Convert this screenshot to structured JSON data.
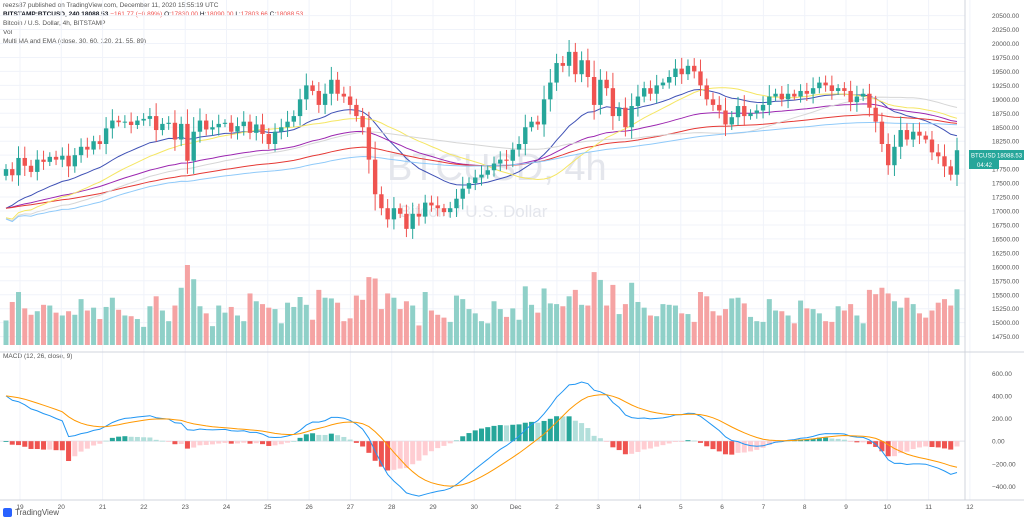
{
  "header": {
    "published": "reezs87 published on TradingView.com, December 11, 2020 15:55:19 UTC",
    "symbol": "BITSTAMP:BTCUSD, 240",
    "last": "18088.53",
    "change": "−161.77 (−0.89%)",
    "o_label": "O:",
    "o": "17830.00",
    "h_label": "H:",
    "h": "18090.00",
    "l_label": "L:",
    "l": "17803.66",
    "c_label": "C:",
    "c": "18088.53",
    "title_line": "Bitcoin / U.S. Dollar, 4h, BITSTAMP",
    "vol_label": "Vol",
    "ma_label": "Multi MA and EMA (close, 30, 60, 120, 21, 55, 89)",
    "macd_label": "MACD (12, 26, close, 9)"
  },
  "watermark": {
    "symbol": "BTCUSD, 4h",
    "name": "Bitcoin / U.S. Dollar"
  },
  "price_badge": {
    "symbol": "BTCUSD",
    "price": "18088.53",
    "countdown": "04:42"
  },
  "footer": {
    "brand": "TradingView"
  },
  "colors": {
    "up": "#26a69a",
    "down": "#ef5350",
    "vol_up": "#8fd0c8",
    "vol_down": "#f5a3a3",
    "macd_line": "#2196f3",
    "signal_line": "#ff9800"
  },
  "chart_data": [
    {
      "type": "candlestick",
      "x_labels": [
        "19",
        "20",
        "21",
        "22",
        "23",
        "24",
        "25",
        "26",
        "27",
        "28",
        "29",
        "30",
        "Dec",
        "2",
        "3",
        "4",
        "5",
        "6",
        "7",
        "8",
        "9",
        "10",
        "11",
        "12"
      ],
      "y_ticks": [
        "14750.00",
        "15000.00",
        "15250.00",
        "15500.00",
        "15750.00",
        "16000.00",
        "16250.00",
        "16500.00",
        "16750.00",
        "17000.00",
        "17250.00",
        "17500.00",
        "17750.00",
        "18000.00",
        "18250.00",
        "18500.00",
        "18750.00",
        "19000.00",
        "19250.00",
        "19500.00",
        "19750.00",
        "20000.00",
        "20250.00",
        "20500.00"
      ],
      "y_range": [
        14600,
        20600
      ],
      "close": [
        17750,
        17640,
        17950,
        17810,
        17700,
        17920,
        17880,
        17970,
        17920,
        17990,
        17800,
        18000,
        18150,
        18100,
        18250,
        18200,
        18480,
        18620,
        18590,
        18600,
        18540,
        18620,
        18650,
        18700,
        18450,
        18560,
        18580,
        18280,
        18560,
        17900,
        18420,
        18620,
        18460,
        18500,
        18560,
        18580,
        18420,
        18520,
        18600,
        18400,
        18550,
        18380,
        18200,
        18420,
        18500,
        18600,
        18700,
        19000,
        19250,
        19150,
        18900,
        19100,
        19350,
        19100,
        19050,
        18900,
        18700,
        18500,
        17920,
        17300,
        17050,
        16850,
        17050,
        16950,
        16680,
        16950,
        16900,
        17150,
        17100,
        17050,
        16980,
        17050,
        17220,
        17400,
        17500,
        17600,
        17650,
        17730,
        17850,
        17920,
        17900,
        18100,
        18200,
        18500,
        18600,
        18550,
        19000,
        19300,
        19650,
        19600,
        19850,
        19450,
        19700,
        19400,
        18900,
        19350,
        19200,
        18700,
        18850,
        18500,
        18880,
        19050,
        19200,
        19100,
        19250,
        19300,
        19400,
        19550,
        19450,
        19600,
        19500,
        19250,
        19000,
        18900,
        18800,
        18550,
        18680,
        18880,
        18700,
        18750,
        18800,
        18900,
        19050,
        19100,
        19000,
        19100,
        19050,
        19150,
        19100,
        19200,
        19300,
        19250,
        19150,
        19200,
        19150,
        18950,
        19050,
        19100,
        18850,
        18600,
        18200,
        17820,
        18150,
        18450,
        18280,
        18420,
        18350,
        18280,
        18050,
        17980,
        17800,
        17650,
        18088.53
      ],
      "indicators": [
        "Multi MA and EMA (close, 30, 60, 120, 21, 55, 89)"
      ],
      "volume_panel": true
    },
    {
      "type": "line",
      "title": "MACD (12, 26, close, 9)",
      "y_ticks": [
        "600.00",
        "400.00",
        "200.00",
        "0.00",
        "−200.00",
        "−400.00"
      ],
      "y_range": [
        -520,
        700
      ],
      "series": [
        "macd",
        "signal",
        "histogram"
      ]
    }
  ]
}
